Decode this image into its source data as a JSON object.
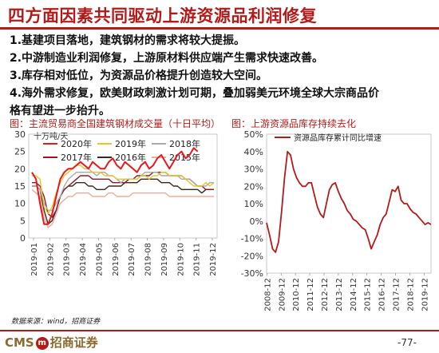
{
  "header": {
    "title": "四方面因素共同驱动上游资源品利润修复"
  },
  "points": [
    "1.基建项目落地，建筑钢材的需求将较大提振。",
    "2.中游制造业利润修复，上游原材料供应端产生需求快速改善。",
    "3.库存相对低位，为资源品价格提升创造较大空间。",
    "4.海外需求修复，欧美财政刺激计划可期，叠加弱美元环境全球大宗商品价",
    "格有望进一步抬升。"
  ],
  "footer": {
    "source": "数据来源：wind，招商证券",
    "logo_latin": "CMS",
    "logo_mark": "m",
    "logo_cn": "招商证券",
    "page": "-77-"
  },
  "chart_data": [
    {
      "type": "line",
      "title": "图：主流贸易商全国建筑钢材成交量（十日平均）",
      "unit": "十万吨/天",
      "x_ticks": [
        "2019-01",
        "2019-02",
        "2019-03",
        "2019-04",
        "2019-05",
        "2019-06",
        "2019-07",
        "2019-08",
        "2019-09",
        "2019-10",
        "2019-11",
        "2019-12"
      ],
      "ylim": [
        0,
        30
      ],
      "y_ticks": [
        0,
        5,
        10,
        15,
        20,
        25,
        30
      ],
      "legend": [
        "2020年",
        "2019年",
        "2018年",
        "2017年",
        "2016年",
        "2015年"
      ],
      "series": [
        {
          "name": "2020年",
          "color": "#E5191E",
          "values": [
            19,
            17,
            10,
            4,
            4,
            7,
            12,
            17,
            19,
            20,
            20,
            21,
            22,
            21,
            20,
            22,
            21,
            20,
            20,
            22,
            23,
            21,
            20,
            22,
            21,
            20,
            19,
            21,
            22,
            20,
            21,
            23,
            24,
            22,
            20,
            22,
            24,
            25,
            23,
            24,
            26,
            25
          ]
        },
        {
          "name": "2019年",
          "color": "#E8C52A",
          "values": [
            18,
            18,
            17,
            9,
            7,
            9,
            13,
            16,
            18,
            19,
            20,
            21,
            21,
            20,
            20,
            19,
            19,
            19,
            18,
            18,
            18,
            17,
            17,
            17,
            17,
            17,
            17,
            18,
            18,
            17,
            18,
            18,
            19,
            19,
            18,
            18,
            18,
            18,
            17,
            16,
            15,
            15,
            15,
            16,
            15,
            16
          ]
        },
        {
          "name": "2018年",
          "color": "#A9A9A9",
          "values": [
            15,
            15,
            14,
            10,
            8,
            8,
            10,
            12,
            15,
            17,
            18,
            19,
            19,
            19,
            19,
            19,
            18,
            19,
            19,
            18,
            18,
            17,
            16,
            17,
            17,
            17,
            17,
            18,
            19,
            19,
            19,
            19,
            18,
            18,
            18,
            18,
            18,
            17,
            17,
            17,
            16,
            15,
            15,
            15,
            16,
            16
          ]
        },
        {
          "name": "2017年",
          "color": "#8B1A2B",
          "values": [
            16,
            16,
            15,
            12,
            7,
            6,
            8,
            12,
            14,
            15,
            16,
            17,
            18,
            18,
            18,
            17,
            17,
            17,
            17,
            17,
            16,
            16,
            16,
            16,
            17,
            17,
            18,
            18,
            18,
            18,
            19,
            19,
            19,
            19,
            18,
            18,
            18,
            18,
            17,
            17,
            16,
            15,
            15,
            14,
            14,
            14
          ]
        },
        {
          "name": "2016年",
          "color": "#3A2A1E",
          "values": [
            15,
            15,
            14,
            8,
            4,
            5,
            8,
            12,
            14,
            15,
            15,
            16,
            16,
            16,
            15,
            15,
            14,
            14,
            14,
            15,
            15,
            15,
            15,
            16,
            16,
            16,
            16,
            17,
            17,
            17,
            17,
            17,
            16,
            16,
            16,
            15,
            15,
            14,
            14,
            14,
            14,
            14,
            13,
            14,
            14,
            14
          ]
        },
        {
          "name": "2015年",
          "color": "#F2A9A0",
          "values": [
            14,
            13,
            12,
            6,
            3,
            4,
            7,
            10,
            11,
            12,
            12,
            13,
            13,
            13,
            13,
            12,
            12,
            12,
            12,
            13,
            13,
            12,
            12,
            12,
            12,
            13,
            13,
            13,
            13,
            13,
            13,
            13,
            13,
            13,
            12,
            12,
            12,
            12,
            12,
            12,
            12,
            12,
            12,
            12,
            12,
            12
          ]
        }
      ]
    },
    {
      "type": "line",
      "title": "图：上游资源品库存持续去化",
      "legend": [
        "资源品库存累计同比增速"
      ],
      "x_ticks": [
        "2008-12",
        "2009-12",
        "2010-12",
        "2011-12",
        "2012-12",
        "2013-12",
        "2014-12",
        "2015-12",
        "2016-12",
        "2017-12",
        "2018-12",
        "2019-12"
      ],
      "ylim": [
        -30,
        50
      ],
      "y_ticks": [
        -30,
        -20,
        -10,
        0,
        10,
        20,
        30,
        40,
        50
      ],
      "y_tick_labels": [
        "-30%",
        "-20%",
        "-10%",
        "0%",
        "10%",
        "20%",
        "30%",
        "40%",
        "50%"
      ],
      "series": [
        {
          "name": "资源品库存累计同比增速",
          "color": "#B31B1B",
          "x_range": [
            2008.9,
            2020.4
          ],
          "values": [
            -1,
            -8,
            -16,
            -18,
            -12,
            5,
            25,
            40,
            38,
            30,
            25,
            22,
            20,
            20,
            22,
            22,
            15,
            8,
            4,
            2,
            10,
            18,
            21,
            22,
            17,
            13,
            10,
            6,
            4,
            1,
            0,
            -2,
            -4,
            -5,
            -10,
            -16,
            -12,
            -8,
            -2,
            2,
            4,
            11,
            18,
            17,
            20,
            12,
            10,
            10,
            7,
            5,
            4,
            2,
            0,
            -2,
            -1,
            -2
          ]
        }
      ]
    }
  ]
}
